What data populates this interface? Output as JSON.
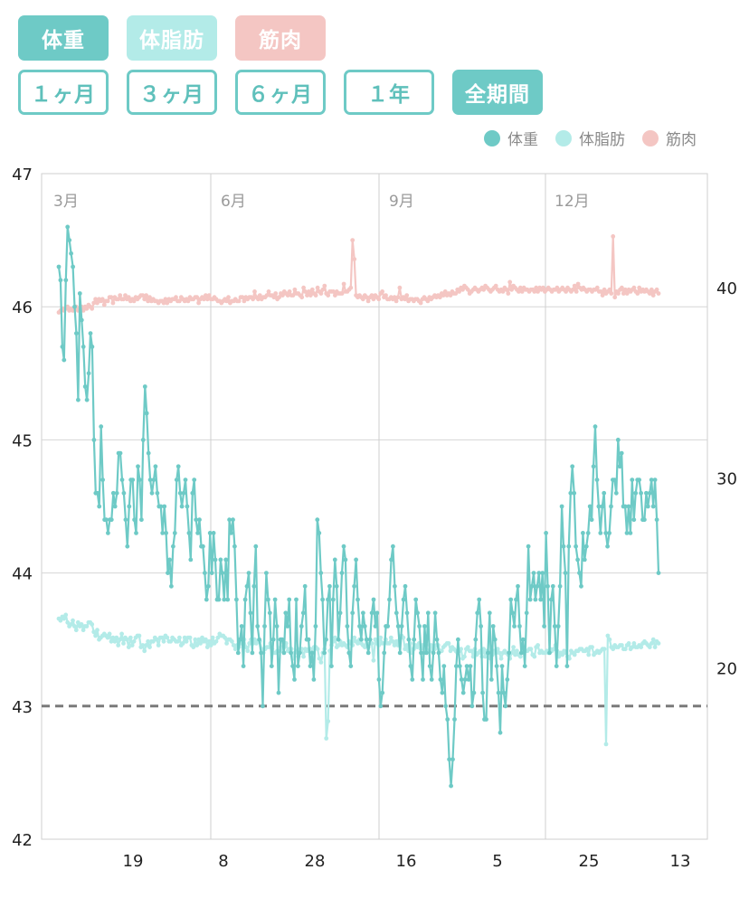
{
  "metric_buttons": [
    {
      "label": "体重",
      "color": "#6ecac6"
    },
    {
      "label": "体脂肪",
      "color": "#b3ebe8"
    },
    {
      "label": "筋肉",
      "color": "#f4c6c3"
    }
  ],
  "period_buttons": [
    {
      "label": "１ヶ月",
      "active": false
    },
    {
      "label": "３ヶ月",
      "active": false
    },
    {
      "label": "６ヶ月",
      "active": false
    },
    {
      "label": "１年",
      "active": false
    },
    {
      "label": "全期間",
      "active": true
    }
  ],
  "chart_data": {
    "type": "line",
    "legend": [
      {
        "name": "体重",
        "color": "#6ecac6"
      },
      {
        "name": "体脂肪",
        "color": "#b3ebe8"
      },
      {
        "name": "筋肉",
        "color": "#f4c6c3"
      }
    ],
    "legend_position": "top-right",
    "grid": true,
    "y_left": {
      "min": 42,
      "max": 47,
      "ticks": [
        42,
        43,
        44,
        45,
        46,
        47
      ]
    },
    "y_right": {
      "min": 11,
      "max": 46,
      "ticks": [
        20,
        30,
        40
      ]
    },
    "target_line": {
      "value": 43,
      "style": "dashed",
      "color": "#7a7a7a"
    },
    "x_bottom_ticks": [
      "19",
      "8",
      "28",
      "16",
      "5",
      "25",
      "13"
    ],
    "x_month_labels": [
      "3月",
      "6月",
      "9月",
      "12月"
    ],
    "series": [
      {
        "name": "体重",
        "axis": "left",
        "color": "#6ecac6",
        "values": [
          46.3,
          46.2,
          45.7,
          45.6,
          46.2,
          46.6,
          46.5,
          46.4,
          46.3,
          46.0,
          45.8,
          45.3,
          46.1,
          45.9,
          45.7,
          45.4,
          45.3,
          45.5,
          45.8,
          45.7,
          45.0,
          44.6,
          44.6,
          44.5,
          45.1,
          44.7,
          44.4,
          44.4,
          44.3,
          44.4,
          44.4,
          44.6,
          44.5,
          44.6,
          44.9,
          44.9,
          44.7,
          44.6,
          44.4,
          44.2,
          44.5,
          44.7,
          44.7,
          44.4,
          44.3,
          44.8,
          44.7,
          44.4,
          45.0,
          45.4,
          45.2,
          44.9,
          44.7,
          44.6,
          44.7,
          44.8,
          44.6,
          44.5,
          44.5,
          44.3,
          44.5,
          44.3,
          44.0,
          44.1,
          43.9,
          44.2,
          44.3,
          44.7,
          44.8,
          44.6,
          44.5,
          44.6,
          44.7,
          44.5,
          44.3,
          44.1,
          44.6,
          44.7,
          44.4,
          44.3,
          44.4,
          44.2,
          44.2,
          44.0,
          43.8,
          43.9,
          44.3,
          44.0,
          44.3,
          44.1,
          43.8,
          43.8,
          44.1,
          44.0,
          43.8,
          44.1,
          43.8,
          44.4,
          44.3,
          44.4,
          44.2,
          43.8,
          43.4,
          43.5,
          43.6,
          43.3,
          43.8,
          43.9,
          44.0,
          43.7,
          43.4,
          43.9,
          44.2,
          43.6,
          43.5,
          43.4,
          43.0,
          43.6,
          44.0,
          43.8,
          43.7,
          43.3,
          43.5,
          43.8,
          43.6,
          43.1,
          43.5,
          43.5,
          43.4,
          43.7,
          43.6,
          43.8,
          43.4,
          43.3,
          43.2,
          43.8,
          43.3,
          43.4,
          43.6,
          43.7,
          43.9,
          43.5,
          43.5,
          43.3,
          43.4,
          43.2,
          43.6,
          44.4,
          44.3,
          44.0,
          43.8,
          43.4,
          43.5,
          43.8,
          43.9,
          43.3,
          43.8,
          44.1,
          43.9,
          43.5,
          43.7,
          44.0,
          44.2,
          44.1,
          43.6,
          43.4,
          43.3,
          43.7,
          43.9,
          44.1,
          43.8,
          43.6,
          43.5,
          43.7,
          43.6,
          43.5,
          43.4,
          43.5,
          43.7,
          43.8,
          43.6,
          43.7,
          43.2,
          43.0,
          43.1,
          43.4,
          43.6,
          43.6,
          43.8,
          44.1,
          44.2,
          43.9,
          43.7,
          43.6,
          43.4,
          43.6,
          43.8,
          43.9,
          43.7,
          43.5,
          43.3,
          43.2,
          43.5,
          43.8,
          43.7,
          43.6,
          43.4,
          43.2,
          43.6,
          43.4,
          43.7,
          43.3,
          43.2,
          43.4,
          43.7,
          43.5,
          43.4,
          43.2,
          43.1,
          43.3,
          43.0,
          42.9,
          42.6,
          42.4,
          42.6,
          42.9,
          43.3,
          43.5,
          43.3,
          43.2,
          43.1,
          43.2,
          43.3,
          43.2,
          43.3,
          43.0,
          43.1,
          43.5,
          43.7,
          43.8,
          43.6,
          43.1,
          42.9,
          42.9,
          43.4,
          43.7,
          43.2,
          43.6,
          43.5,
          43.3,
          43.1,
          42.8,
          43.3,
          43.1,
          43.0,
          43.2,
          43.4,
          43.8,
          43.7,
          43.6,
          43.8,
          43.9,
          43.6,
          43.4,
          43.5,
          43.3,
          43.7,
          44.2,
          43.8,
          43.9,
          44.0,
          43.8,
          43.9,
          44.0,
          43.8,
          44.0,
          43.6,
          44.3,
          43.9,
          43.4,
          43.8,
          43.9,
          43.6,
          43.3,
          43.6,
          43.9,
          44.5,
          44.2,
          44.0,
          43.3,
          44.2,
          44.6,
          44.8,
          44.6,
          44.2,
          44.1,
          44.0,
          43.9,
          44.3,
          44.1,
          44.2,
          44.3,
          44.5,
          44.4,
          44.8,
          45.1,
          44.7,
          44.5,
          44.3,
          44.5,
          44.6,
          44.3,
          44.2,
          44.3,
          44.5,
          44.7,
          44.7,
          44.6,
          45.0,
          44.8,
          44.9,
          44.5,
          44.5,
          44.3,
          44.5,
          44.3,
          44.7,
          44.4,
          44.6,
          44.7,
          44.7,
          44.6,
          44.4,
          44.4,
          44.6,
          44.5,
          44.6,
          44.7,
          44.5,
          44.7,
          44.4,
          44.0
        ]
      },
      {
        "name": "体脂肪",
        "axis": "right",
        "color": "#b3ebe8",
        "values": [
          22.6,
          22.5,
          22.7,
          22.6,
          22.8,
          22.4,
          22.2,
          22.3,
          22.5,
          22.2,
          22.0,
          22.4,
          22.2,
          22.3,
          22.0,
          22.2,
          22.2,
          22.4,
          22.4,
          22.3,
          21.9,
          21.7,
          22.0,
          21.5,
          21.6,
          21.7,
          21.8,
          21.7,
          21.6,
          21.8,
          21.4,
          21.6,
          21.4,
          21.6,
          21.2,
          21.5,
          21.8,
          21.3,
          21.6,
          21.5,
          21.1,
          21.6,
          21.2,
          21.4,
          21.6,
          21.7,
          21.7,
          21.1,
          21.2,
          20.9,
          21.2,
          21.4,
          21.1,
          21.4,
          21.4,
          21.6,
          21.5,
          21.2,
          21.6,
          21.6,
          21.4,
          21.7,
          21.6,
          21.4,
          21.4,
          21.6,
          21.5,
          21.4,
          21.4,
          21.6,
          21.2,
          21.3,
          21.6,
          21.4,
          21.6,
          21.6,
          21.2,
          21.1,
          21.5,
          21.2,
          21.5,
          21.3,
          21.6,
          21.4,
          21.5,
          21.1,
          21.4,
          21.2,
          21.6,
          21.3,
          21.4,
          21.6,
          21.8,
          21.7,
          21.7,
          21.6,
          21.3,
          21.5,
          21.5,
          21.4,
          21.2,
          21.0,
          21.2,
          21.1,
          21.3,
          21.5,
          21.5,
          21.1,
          20.9,
          21.3,
          21.5,
          21.3,
          21.5,
          21.3,
          21.4,
          21.4,
          21.0,
          20.8,
          21.0,
          21.1,
          21.1,
          21.3,
          21.0,
          20.8,
          20.8,
          20.9,
          20.9,
          21.1,
          20.9,
          21.1,
          21.3,
          20.9,
          21.0,
          21.0,
          20.5,
          20.8,
          20.9,
          20.6,
          21.0,
          21.0,
          20.6,
          21.0,
          20.9,
          21.0,
          21.0,
          20.6,
          21.1,
          21.1,
          21.0,
          20.5,
          20.3,
          20.8,
          21.0,
          16.3,
          17.2,
          20.9,
          21.2,
          21.4,
          21.6,
          21.1,
          21.2,
          21.4,
          21.2,
          21.3,
          21.2,
          21.1,
          21.4,
          21.3,
          21.2,
          21.6,
          21.4,
          21.3,
          21.5,
          21.3,
          21.2,
          21.1,
          21.5,
          21.1,
          21.3,
          21.3,
          20.4,
          21.5,
          21.3,
          21.2,
          21.6,
          21.3,
          21.3,
          21.5,
          21.3,
          21.3,
          21.6,
          21.4,
          21.2,
          21.4,
          21.2,
          21.5,
          21.7,
          21.6,
          21.0,
          21.2,
          20.9,
          21.3,
          20.8,
          21.0,
          21.2,
          21.1,
          21.3,
          21.0,
          21.2,
          20.8,
          21.2,
          20.9,
          20.9,
          21.2,
          20.9,
          21.0,
          21.2,
          21.2,
          20.9,
          20.9,
          21.1,
          21.2,
          21.3,
          21.3,
          20.9,
          21.1,
          21.0,
          20.9,
          20.8,
          20.9,
          21.0,
          20.5,
          20.6,
          21.0,
          21.1,
          20.9,
          20.9,
          20.6,
          21.0,
          20.7,
          20.8,
          20.9,
          20.6,
          21.0,
          20.6,
          20.9,
          20.8,
          20.5,
          20.7,
          20.9,
          20.8,
          21.0,
          20.8,
          20.5,
          20.8,
          20.9,
          20.8,
          20.7,
          20.5,
          20.8,
          21.1,
          20.7,
          20.9,
          20.7,
          20.6,
          20.9,
          20.8,
          20.9,
          20.9,
          21.0,
          21.0,
          20.7,
          20.6,
          21.1,
          21.2,
          20.8,
          20.9,
          20.8,
          20.8,
          20.9,
          20.8,
          21.0,
          20.9,
          21.0,
          21.2,
          20.9,
          20.6,
          20.8,
          20.7,
          20.9,
          20.8,
          20.6,
          20.5,
          20.9,
          20.8,
          20.7,
          20.9,
          20.9,
          21.0,
          21.0,
          20.9,
          20.9,
          21.0,
          20.7,
          21.1,
          21.1,
          20.7,
          20.8,
          20.9,
          20.8,
          20.9,
          21.0,
          21.0,
          16.0,
          21.7,
          21.5,
          21.1,
          21.0,
          21.2,
          21.1,
          21.1,
          21.2,
          21.2,
          21.0,
          21.0,
          21.2,
          21.3,
          21.0,
          21.1,
          21.3,
          21.1,
          21.1,
          21.2,
          21.1,
          21.3,
          21.4,
          21.3,
          21.2,
          21.1,
          21.3,
          21.5,
          21.1,
          21.4,
          21.3
        ]
      },
      {
        "name": "筋肉",
        "axis": "right",
        "color": "#f4c6c3",
        "values": [
          38.7,
          38.8,
          38.9,
          38.8,
          38.9,
          39.0,
          38.8,
          38.9,
          38.8,
          38.9,
          39.0,
          38.8,
          38.9,
          39.0,
          38.8,
          39.0,
          38.9,
          39.1,
          39.0,
          38.9,
          39.2,
          39.4,
          39.2,
          39.4,
          39.3,
          39.4,
          39.1,
          39.3,
          39.3,
          39.5,
          39.5,
          39.2,
          39.5,
          39.4,
          39.4,
          39.6,
          39.4,
          39.4,
          39.6,
          39.4,
          39.5,
          39.3,
          39.4,
          39.3,
          39.5,
          39.4,
          39.5,
          39.6,
          39.6,
          39.4,
          39.6,
          39.3,
          39.5,
          39.3,
          39.4,
          39.3,
          39.3,
          39.2,
          39.3,
          39.3,
          39.2,
          39.4,
          39.2,
          39.4,
          39.3,
          39.4,
          39.4,
          39.5,
          39.3,
          39.3,
          39.5,
          39.4,
          39.3,
          39.4,
          39.3,
          39.5,
          39.4,
          39.4,
          39.5,
          39.5,
          39.2,
          39.4,
          39.5,
          39.4,
          39.6,
          39.4,
          39.6,
          39.4,
          39.4,
          39.5,
          39.4,
          39.3,
          39.3,
          39.2,
          39.3,
          39.4,
          39.3,
          39.5,
          39.2,
          39.3,
          39.3,
          39.4,
          39.3,
          39.3,
          39.5,
          39.5,
          39.3,
          39.5,
          39.4,
          39.5,
          39.5,
          39.4,
          39.8,
          39.5,
          39.4,
          39.6,
          39.4,
          39.5,
          39.5,
          39.6,
          39.8,
          39.6,
          39.6,
          39.5,
          39.7,
          39.4,
          39.5,
          39.7,
          39.6,
          39.8,
          39.7,
          39.6,
          39.8,
          39.6,
          39.6,
          39.9,
          39.7,
          39.7,
          39.6,
          39.5,
          40.0,
          39.8,
          39.6,
          39.8,
          39.6,
          39.9,
          39.7,
          39.6,
          40.0,
          39.8,
          39.7,
          39.9,
          40.1,
          39.7,
          39.6,
          39.8,
          39.8,
          39.8,
          39.6,
          39.8,
          39.7,
          39.7,
          39.7,
          40.2,
          39.8,
          39.8,
          39.9,
          40.0,
          42.5,
          41.5,
          39.6,
          39.5,
          39.6,
          39.5,
          39.4,
          39.6,
          39.5,
          39.3,
          39.5,
          39.6,
          39.4,
          39.6,
          39.5,
          39.4,
          39.7,
          39.8,
          39.5,
          39.6,
          39.4,
          39.4,
          39.5,
          39.4,
          39.5,
          39.3,
          39.5,
          40.0,
          39.4,
          39.5,
          39.4,
          39.6,
          39.3,
          39.4,
          39.4,
          39.3,
          39.4,
          39.4,
          39.3,
          39.2,
          39.4,
          39.5,
          39.4,
          39.3,
          39.5,
          39.4,
          39.5,
          39.6,
          39.5,
          39.6,
          39.5,
          39.7,
          39.6,
          39.8,
          39.6,
          39.7,
          39.6,
          39.8,
          39.7,
          39.7,
          39.9,
          39.8,
          40.0,
          39.9,
          40.1,
          40.0,
          39.9,
          39.7,
          39.8,
          39.9,
          40.0,
          39.9,
          39.8,
          39.9,
          40.0,
          39.9,
          40.1,
          40.0,
          39.9,
          39.8,
          39.9,
          40.0,
          40.1,
          39.9,
          39.8,
          39.9,
          39.8,
          40.0,
          39.9,
          39.7,
          40.3,
          39.9,
          40.1,
          40.0,
          39.9,
          39.8,
          40.0,
          39.8,
          40.0,
          39.9,
          39.9,
          39.8,
          39.9,
          39.9,
          39.8,
          40.0,
          39.8,
          40.0,
          39.9,
          40.0,
          39.8,
          39.9,
          40.0,
          39.9,
          39.8,
          39.9,
          39.9,
          40.0,
          39.8,
          39.9,
          40.0,
          39.9,
          39.8,
          40.0,
          39.9,
          39.8,
          39.9,
          40.1,
          39.8,
          40.2,
          40.0,
          39.9,
          40.0,
          39.9,
          39.8,
          39.9,
          39.9,
          39.8,
          39.9,
          39.9,
          40.0,
          39.8,
          39.8,
          39.6,
          39.9,
          39.7,
          39.8,
          39.9,
          39.7,
          42.7,
          39.5,
          39.8,
          39.7,
          39.9,
          40.0,
          39.7,
          39.9,
          39.7,
          39.9,
          39.8,
          39.9,
          40.0,
          39.8,
          39.7,
          40.0,
          39.8,
          39.9,
          39.8,
          39.9,
          39.8,
          39.7,
          39.9,
          39.6,
          39.8,
          39.9,
          39.7
        ]
      }
    ]
  }
}
